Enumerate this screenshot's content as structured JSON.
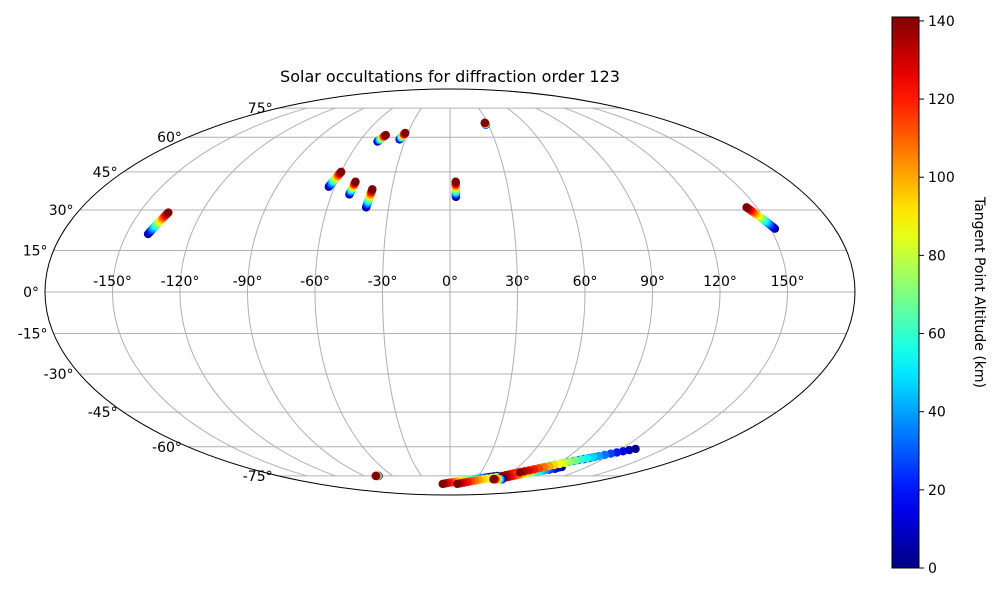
{
  "chart_data": {
    "type": "scatter",
    "projection": "mollweide",
    "title": "Solar occultations for diffraction order 123",
    "xlabel": "",
    "ylabel": "",
    "grid": true,
    "longitude_ticks": [
      {
        "value": -150,
        "label": "-150°"
      },
      {
        "value": -120,
        "label": "-120°"
      },
      {
        "value": -90,
        "label": "-90°"
      },
      {
        "value": -60,
        "label": "-60°"
      },
      {
        "value": -30,
        "label": "-30°"
      },
      {
        "value": 0,
        "label": "0°"
      },
      {
        "value": 30,
        "label": "30°"
      },
      {
        "value": 60,
        "label": "60°"
      },
      {
        "value": 90,
        "label": "90°"
      },
      {
        "value": 120,
        "label": "120°"
      },
      {
        "value": 150,
        "label": "150°"
      }
    ],
    "latitude_ticks": [
      {
        "value": 75,
        "label": "75°"
      },
      {
        "value": 60,
        "label": "60°"
      },
      {
        "value": 45,
        "label": "45°"
      },
      {
        "value": 30,
        "label": "30°"
      },
      {
        "value": 15,
        "label": "15°"
      },
      {
        "value": 0,
        "label": "0°"
      },
      {
        "value": -15,
        "label": "-15°"
      },
      {
        "value": -30,
        "label": "-30°"
      },
      {
        "value": -45,
        "label": "-45°"
      },
      {
        "value": -60,
        "label": "-60°"
      },
      {
        "value": -75,
        "label": "-75°"
      }
    ],
    "colorbar": {
      "label": "Tangent Point Altitude (km)",
      "colormap": "jet",
      "range": [
        0,
        141
      ],
      "ticks": [
        {
          "value": 0,
          "label": "0"
        },
        {
          "value": 20,
          "label": "20"
        },
        {
          "value": 40,
          "label": "40"
        },
        {
          "value": 60,
          "label": "60"
        },
        {
          "value": 80,
          "label": "80"
        },
        {
          "value": 100,
          "label": "100"
        },
        {
          "value": 120,
          "label": "120"
        },
        {
          "value": 140,
          "label": "140"
        }
      ]
    },
    "occultation_tracks": [
      {
        "start": {
          "lon": -140,
          "lat": 21,
          "alt": 0
        },
        "end": {
          "lon": -136,
          "lat": 29,
          "alt": 141
        }
      },
      {
        "start": {
          "lon": -63,
          "lat": 39,
          "alt": 0
        },
        "end": {
          "lon": -60,
          "lat": 45,
          "alt": 141
        }
      },
      {
        "start": {
          "lon": -51,
          "lat": 36,
          "alt": 0
        },
        "end": {
          "lon": -50,
          "lat": 41,
          "alt": 141
        }
      },
      {
        "start": {
          "lon": -41,
          "lat": 31,
          "alt": 0
        },
        "end": {
          "lon": -40,
          "lat": 38,
          "alt": 141
        }
      },
      {
        "start": {
          "lon": -48,
          "lat": 58,
          "alt": 0
        },
        "end": {
          "lon": -45,
          "lat": 61,
          "alt": 141
        }
      },
      {
        "start": {
          "lon": -34,
          "lat": 59,
          "alt": 0
        },
        "end": {
          "lon": -32,
          "lat": 62,
          "alt": 141
        }
      },
      {
        "start": {
          "lon": 3,
          "lat": 35,
          "alt": 0
        },
        "end": {
          "lon": 3,
          "lat": 41,
          "alt": 141
        }
      },
      {
        "start": {
          "lon": 28,
          "lat": 66,
          "alt": 0
        },
        "end": {
          "lon": 28,
          "lat": 67,
          "alt": 141
        }
      },
      {
        "start": {
          "lon": 152,
          "lat": 23,
          "alt": 0
        },
        "end": {
          "lon": 145,
          "lat": 31,
          "alt": 141
        }
      },
      {
        "start": {
          "lon": -75,
          "lat": -75,
          "alt": 0
        },
        "end": {
          "lon": -78,
          "lat": -75,
          "alt": 141
        }
      },
      {
        "start": {
          "lon": 50,
          "lat": -75,
          "alt": 0
        },
        "end": {
          "lon": -10,
          "lat": -80,
          "alt": 141
        }
      },
      {
        "start": {
          "lon": 95,
          "lat": -71,
          "alt": 0
        },
        "end": {
          "lon": 10,
          "lat": -80,
          "alt": 141
        }
      },
      {
        "start": {
          "lon": 110,
          "lat": -65,
          "alt": 0
        },
        "end": {
          "lon": 55,
          "lat": -75,
          "alt": 141
        }
      },
      {
        "start": {
          "lon": 98,
          "lat": -70,
          "alt": 0
        },
        "end": {
          "lon": 60,
          "lat": -76,
          "alt": 141
        }
      },
      {
        "start": {
          "lon": 130,
          "lat": -61,
          "alt": 0
        },
        "end": {
          "lon": 68,
          "lat": -73,
          "alt": 141
        }
      },
      {
        "start": {
          "lon": 60,
          "lat": -77,
          "alt": 0
        },
        "end": {
          "lon": 50,
          "lat": -77,
          "alt": 141
        }
      }
    ]
  }
}
